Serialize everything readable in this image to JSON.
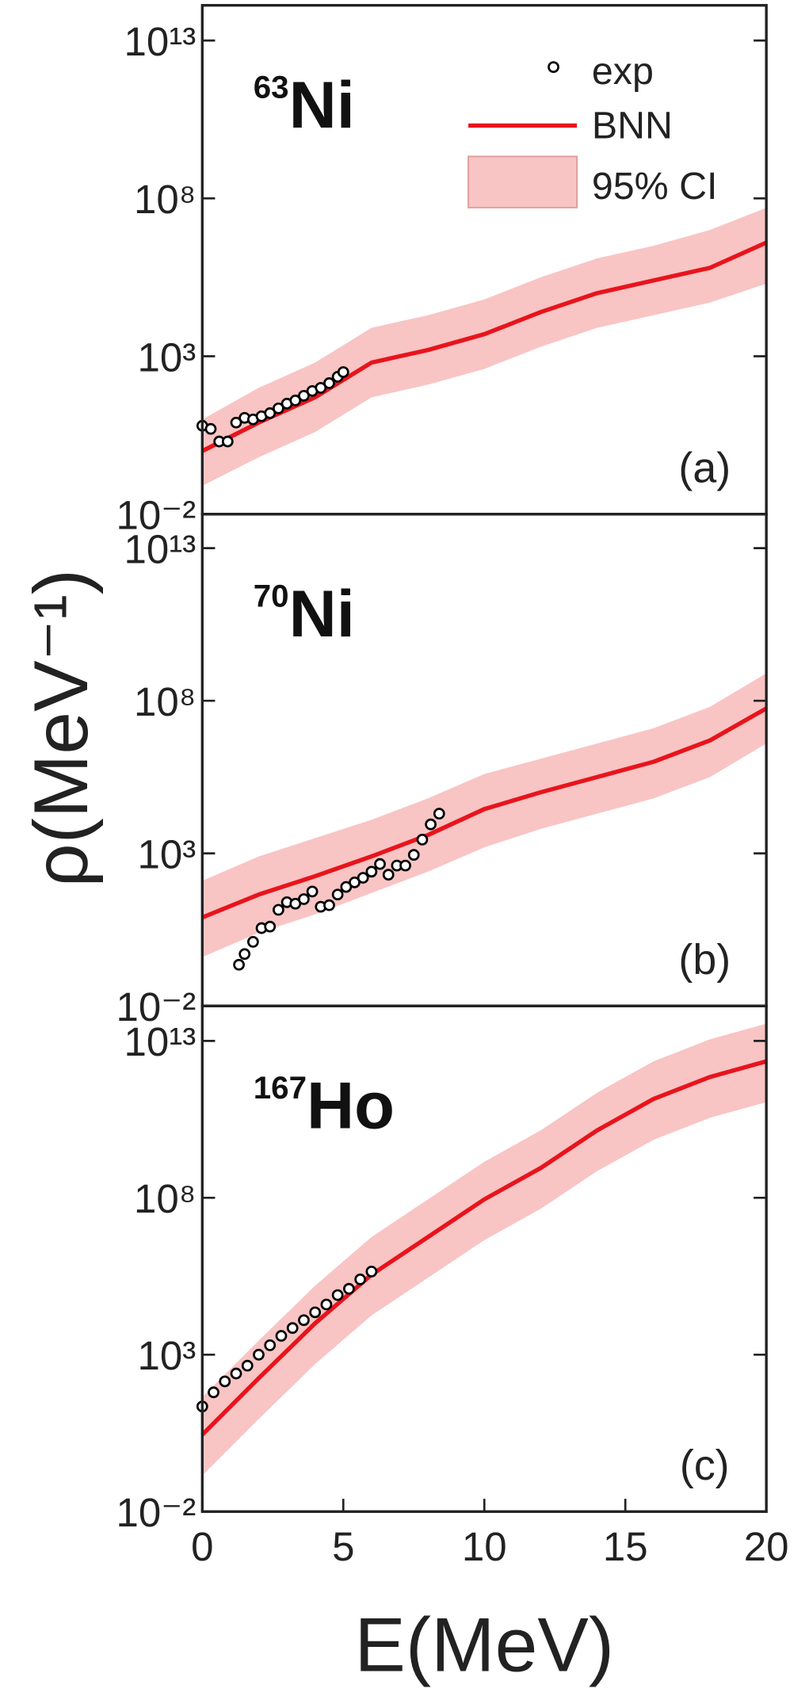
{
  "chart_data": [
    {
      "type": "line",
      "yscale": "log",
      "legend": "upper right",
      "annotation": {
        "mass": "63",
        "element": "Ni"
      },
      "panel_label": "(a)",
      "xlim": [
        0,
        20
      ],
      "ylim": [
        0.01,
        130000000000000.0
      ],
      "yticks": [
        {
          "value": 10000000000000.0,
          "label": "10¹³"
        },
        {
          "value": 100000000.0,
          "label": "10⁸"
        },
        {
          "value": 1000,
          "label": "10³"
        },
        {
          "value": 0.01,
          "label": "10⁻²"
        }
      ],
      "series": [
        {
          "name": "exp",
          "type": "scatter",
          "color": "#000000",
          "x": [
            0,
            0.3,
            0.6,
            0.9,
            1.2,
            1.5,
            1.8,
            2.1,
            2.4,
            2.7,
            3,
            3.3,
            3.6,
            3.9,
            4.2,
            4.5,
            4.8,
            5
          ],
          "values": [
            6.31,
            5.01,
            2.0,
            2.0,
            7.94,
            11.2,
            10,
            12.6,
            15.8,
            22.4,
            31.6,
            39.8,
            56.2,
            79.4,
            100,
            141,
            224,
            316
          ]
        },
        {
          "name": "BNN",
          "type": "line",
          "color": "#e8141c",
          "x": [
            0,
            2,
            4,
            6,
            8,
            10,
            12,
            14,
            16,
            18,
            20
          ],
          "values": [
            1,
            7.94,
            50.1,
            631,
            1580,
            5010,
            25100,
            100000,
            251000,
            631000,
            3980000
          ]
        },
        {
          "name": "95% CI",
          "type": "band",
          "color": "#f9c4c4",
          "x": [
            0,
            2,
            4,
            6,
            8,
            10,
            12,
            14,
            16,
            18,
            20
          ],
          "lower": [
            0.0794,
            0.631,
            3.98,
            50.1,
            126,
            398,
            2000,
            7940,
            20000,
            50100,
            200000
          ],
          "upper": [
            10,
            100,
            631,
            7940,
            20000,
            63100,
            316000,
            1260000,
            3160000,
            10000000,
            50100000
          ]
        }
      ]
    },
    {
      "type": "line",
      "yscale": "log",
      "ylabel": "ρ(MeV⁻¹)",
      "annotation": {
        "mass": "70",
        "element": "Ni"
      },
      "panel_label": "(b)",
      "xlim": [
        0,
        20
      ],
      "ylim": [
        0.01,
        130000000000000.0
      ],
      "yticks": [
        {
          "value": 10000000000000.0,
          "label": "10¹³"
        },
        {
          "value": 100000000.0,
          "label": "10⁸"
        },
        {
          "value": 1000,
          "label": "10³"
        },
        {
          "value": 0.01,
          "label": "10⁻²"
        }
      ],
      "series": [
        {
          "type": "scatter",
          "color": "#000000",
          "x": [
            1.3,
            1.5,
            1.8,
            2.1,
            2.4,
            2.7,
            3,
            3.3,
            3.6,
            3.9,
            4.2,
            4.5,
            4.8,
            5.1,
            5.4,
            5.7,
            6,
            6.3,
            6.6,
            6.9,
            7.2,
            7.5,
            7.8,
            8.1,
            8.4
          ],
          "values": [
            0.224,
            0.501,
            1.26,
            3.55,
            3.98,
            14.1,
            25.1,
            22.4,
            31.6,
            56.2,
            17.8,
            20,
            44.7,
            79.4,
            112,
            158,
            251,
            447,
            200,
            398,
            398,
            891,
            2820,
            8910,
            20000
          ]
        },
        {
          "type": "line",
          "color": "#e8141c",
          "x": [
            0,
            2,
            4,
            6,
            8,
            10,
            12,
            14,
            16,
            18,
            20
          ],
          "values": [
            7.94,
            44.7,
            178,
            794,
            3980,
            28200,
            100000,
            316000,
            1000000,
            5010000,
            56200000
          ]
        },
        {
          "type": "band",
          "color": "#f9c4c4",
          "x": [
            0,
            2,
            4,
            6,
            8,
            10,
            12,
            14,
            16,
            18,
            20
          ],
          "lower": [
            0.398,
            2.51,
            10,
            50.1,
            251,
            1580,
            6310,
            20000,
            63100,
            316000,
            3980000
          ],
          "upper": [
            126,
            794,
            3160,
            12600,
            63100,
            398000,
            1260000,
            3980000,
            12600000,
            63100000,
            794000000
          ]
        }
      ]
    },
    {
      "type": "line",
      "yscale": "log",
      "xlabel": "E(MeV)",
      "annotation": {
        "mass": "167",
        "element": "Ho"
      },
      "panel_label": "(c)",
      "xlim": [
        0,
        20
      ],
      "xticks": [
        0,
        5,
        10,
        15,
        20
      ],
      "ylim": [
        0.01,
        130000000000000.0
      ],
      "yticks": [
        {
          "value": 10000000000000.0,
          "label": "10¹³"
        },
        {
          "value": 100000000.0,
          "label": "10⁸"
        },
        {
          "value": 1000,
          "label": "10³"
        },
        {
          "value": 0.01,
          "label": "10⁻²"
        }
      ],
      "series": [
        {
          "type": "scatter",
          "color": "#000000",
          "x": [
            0,
            0.4,
            0.8,
            1.2,
            1.6,
            2,
            2.4,
            2.8,
            3.2,
            3.6,
            4,
            4.4,
            4.8,
            5.2,
            5.6,
            6
          ],
          "values": [
            22.4,
            63.1,
            141,
            251,
            447,
            1000,
            2000,
            3980,
            7080,
            12600,
            22400,
            39800,
            79400,
            126000,
            251000,
            447000
          ]
        },
        {
          "type": "line",
          "color": "#e8141c",
          "x": [
            0,
            2,
            4,
            6,
            8,
            10,
            12,
            14,
            16,
            18,
            20
          ],
          "values": [
            2.82,
            178,
            10000,
            355000,
            5620000,
            89100000,
            891000000,
            14100000000,
            141000000000,
            708000000000,
            2240000000000
          ]
        },
        {
          "type": "band",
          "color": "#f9c4c4",
          "x": [
            0,
            2,
            4,
            6,
            8,
            10,
            12,
            14,
            16,
            18,
            20
          ],
          "lower": [
            0.141,
            8.91,
            501,
            17800,
            282000,
            4470000,
            44700000,
            708000000,
            7080000000,
            35500000000,
            112000000000
          ],
          "upper": [
            44.7,
            2820,
            158000,
            5620000,
            89100000,
            1410000000,
            14100000000,
            224000000000,
            2240000000000,
            11200000000000,
            35500000000000
          ]
        }
      ]
    }
  ]
}
